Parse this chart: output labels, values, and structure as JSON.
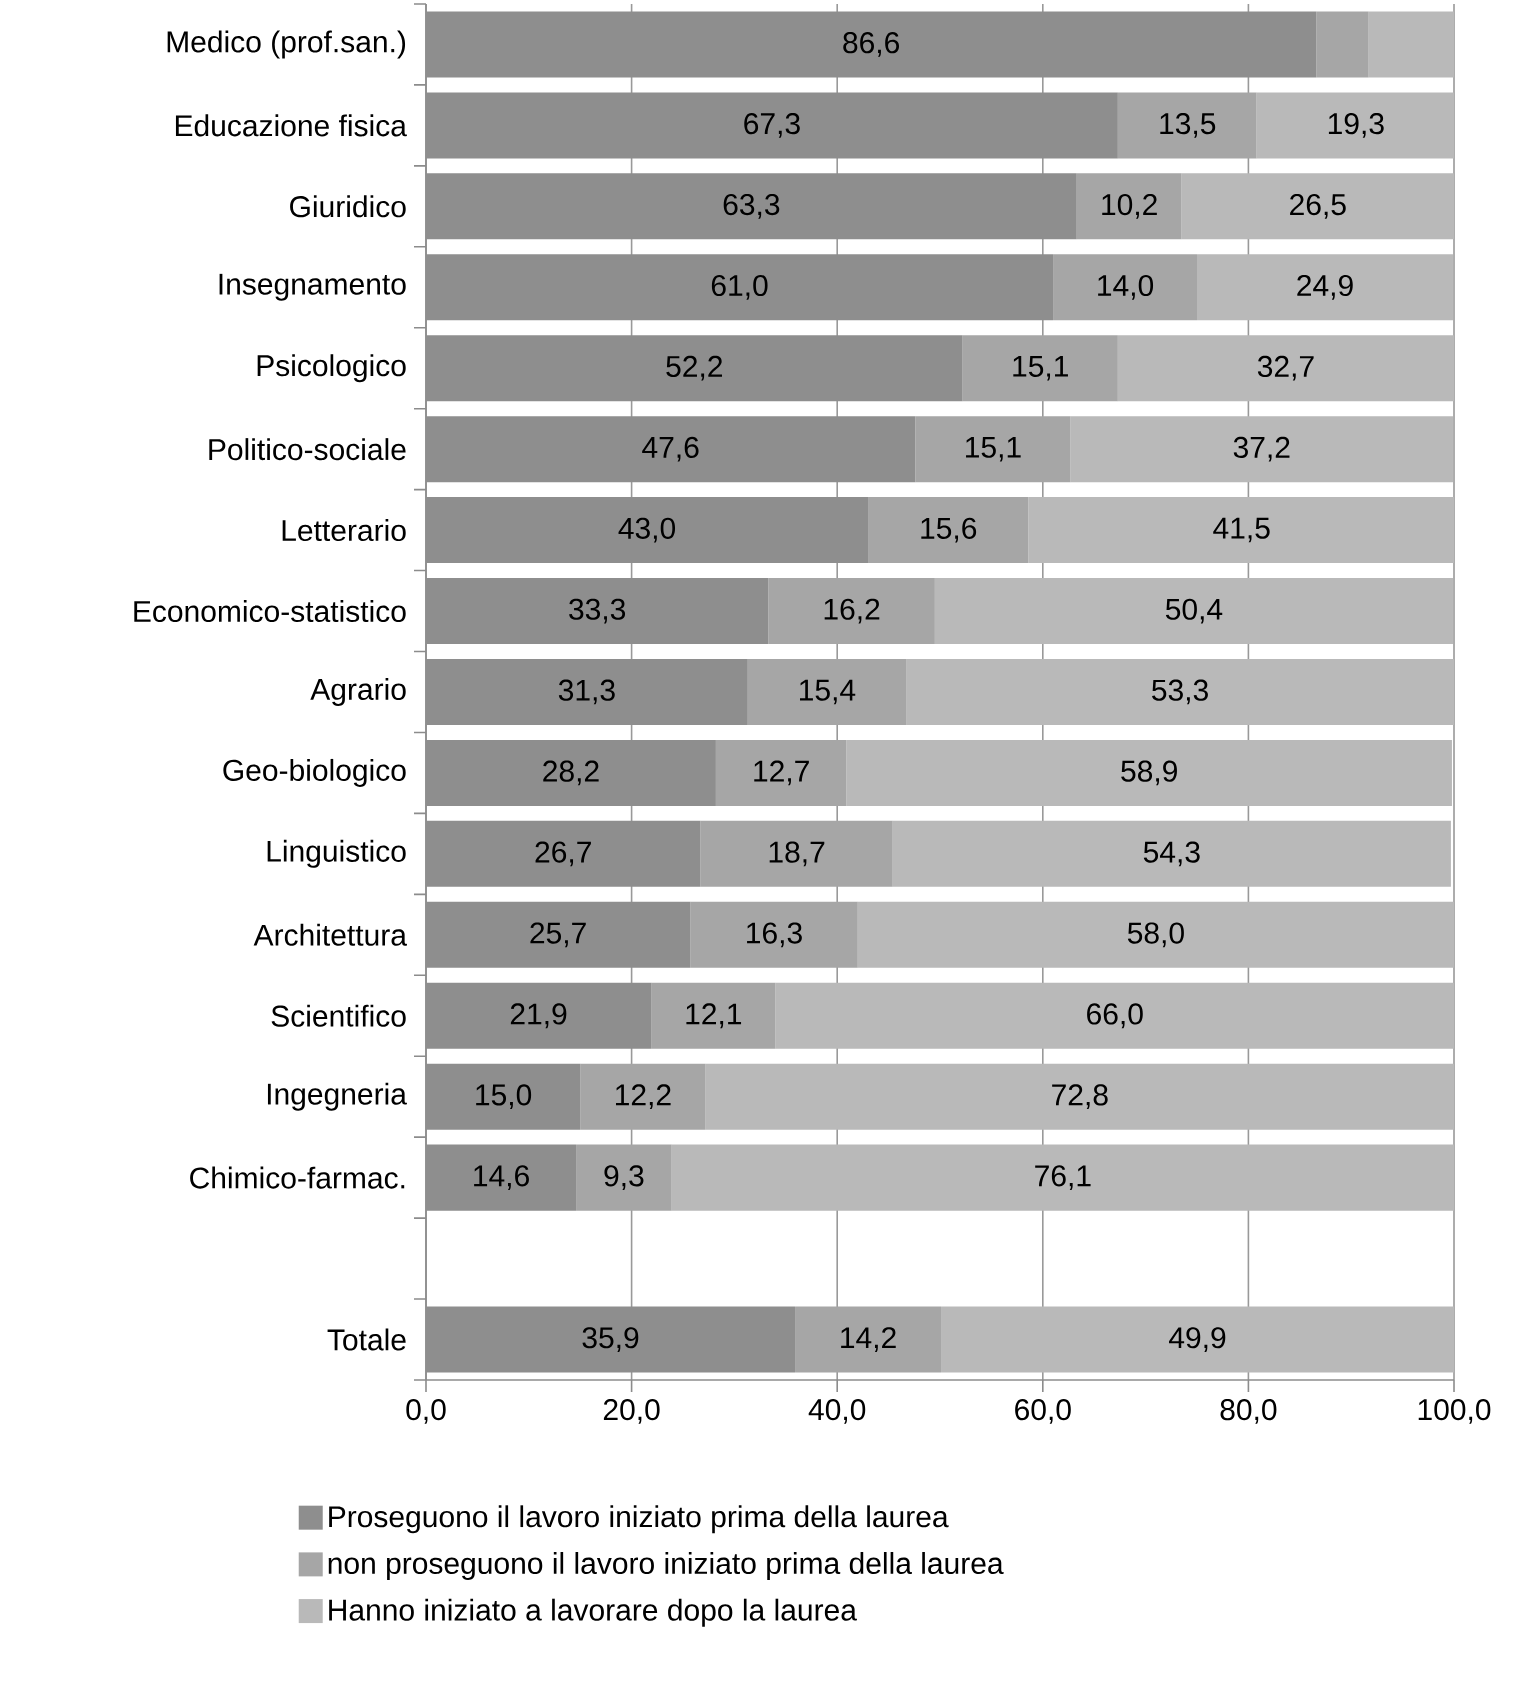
{
  "chart_data": {
    "type": "bar",
    "orientation": "horizontal",
    "stacked": true,
    "categories": [
      "Medico (prof.san.)",
      "Educazione fisica",
      "Giuridico",
      "Insegnamento",
      "Psicologico",
      "Politico-sociale",
      "Letterario",
      "Economico-statistico",
      "Agrario",
      "Geo-biologico",
      "Linguistico",
      "Architettura",
      "Scientifico",
      "Ingegneria",
      "Chimico-farmac.",
      null,
      "Totale"
    ],
    "series": [
      {
        "name": "Proseguono il lavoro iniziato prima della laurea",
        "color": "#8e8e8e",
        "values": [
          86.6,
          67.3,
          63.3,
          61.0,
          52.2,
          47.6,
          43.0,
          33.3,
          31.3,
          28.2,
          26.7,
          25.7,
          21.9,
          15.0,
          14.6,
          null,
          35.9
        ],
        "value_labels": [
          "86,6",
          "67,3",
          "63,3",
          "61,0",
          "52,2",
          "47,6",
          "43,0",
          "33,3",
          "31,3",
          "28,2",
          "26,7",
          "25,7",
          "21,9",
          "15,0",
          "14,6",
          null,
          "35,9"
        ]
      },
      {
        "name": "non proseguono il lavoro iniziato prima della laurea",
        "color": "#a6a6a6",
        "values": [
          5.1,
          13.5,
          10.2,
          14.0,
          15.1,
          15.1,
          15.6,
          16.2,
          15.4,
          12.7,
          18.7,
          16.3,
          12.1,
          12.2,
          9.3,
          null,
          14.2
        ],
        "value_labels": [
          null,
          "13,5",
          "10,2",
          "14,0",
          "15,1",
          "15,1",
          "15,6",
          "16,2",
          "15,4",
          "12,7",
          "18,7",
          "16,3",
          "12,1",
          "12,2",
          "9,3",
          null,
          "14,2"
        ]
      },
      {
        "name": "Hanno iniziato a lavorare dopo la laurea",
        "color": "#b9b9b9",
        "values": [
          8.3,
          19.3,
          26.5,
          24.9,
          32.7,
          37.2,
          41.5,
          50.4,
          53.3,
          58.9,
          54.3,
          58.0,
          66.0,
          72.8,
          76.1,
          null,
          49.9
        ],
        "value_labels": [
          null,
          "19,3",
          "26,5",
          "24,9",
          "32,7",
          "37,2",
          "41,5",
          "50,4",
          "53,3",
          "58,9",
          "54,3",
          "58,0",
          "66,0",
          "72,8",
          "76,1",
          null,
          "49,9"
        ]
      }
    ],
    "xlim": [
      0,
      100
    ],
    "xticks": [
      {
        "value": 0,
        "label": "0,0"
      },
      {
        "value": 20,
        "label": "20,0"
      },
      {
        "value": 40,
        "label": "40,0"
      },
      {
        "value": 60,
        "label": "60,0"
      },
      {
        "value": 80,
        "label": "80,0"
      },
      {
        "value": 100,
        "label": "100,0"
      }
    ],
    "grid": "x",
    "legend": "bottom"
  }
}
